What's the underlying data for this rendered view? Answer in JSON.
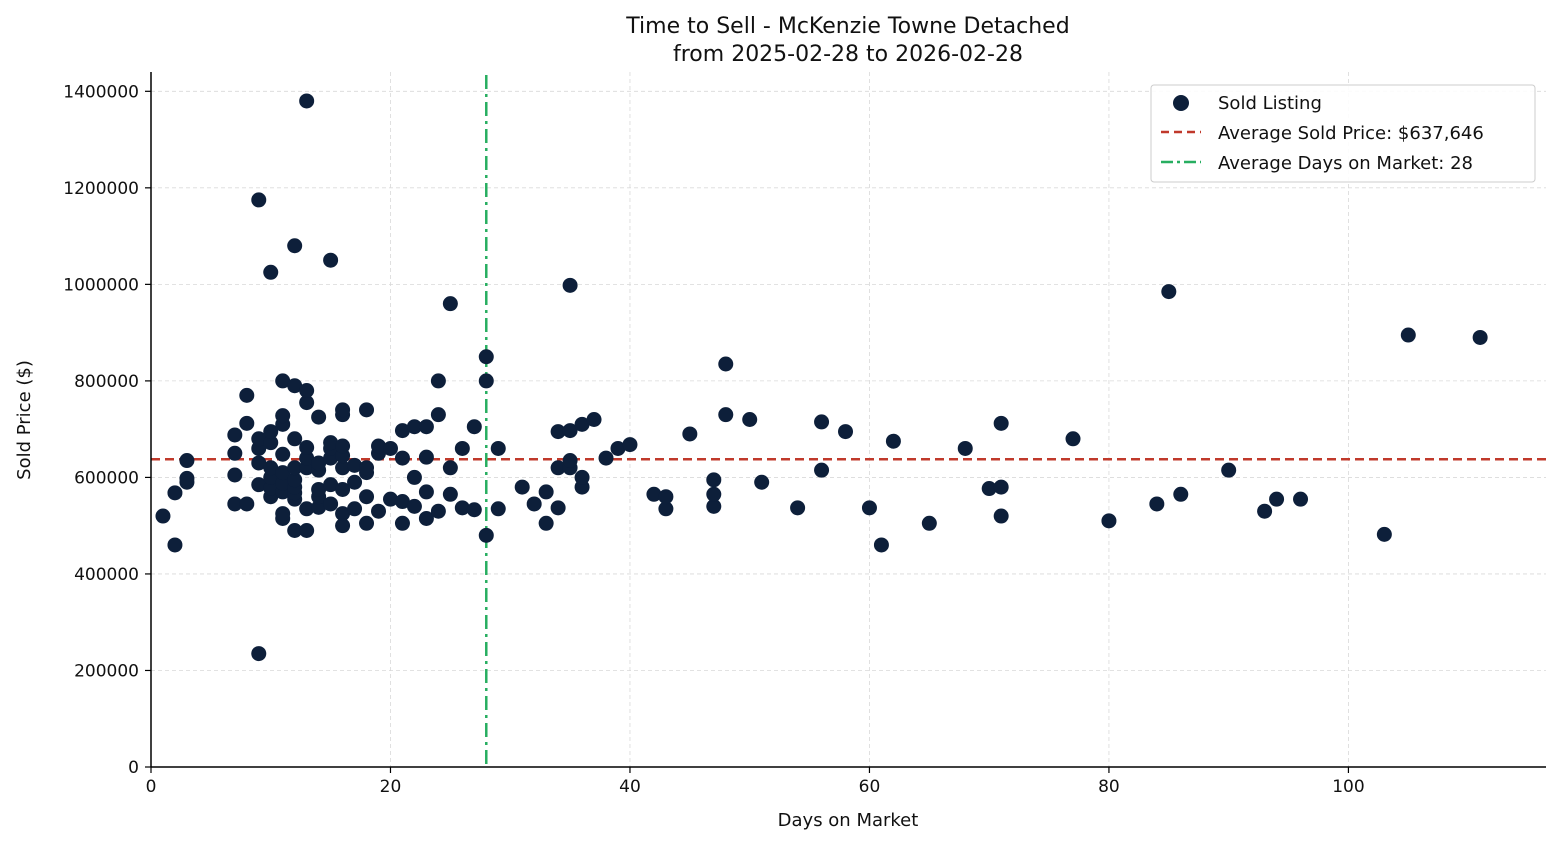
{
  "chart_data": {
    "type": "scatter",
    "title": "Time to Sell - McKenzie Towne Detached",
    "subtitle": "from 2025-02-28 to 2026-02-28",
    "xlabel": "Days on Market",
    "ylabel": "Sold Price ($)",
    "xlim": [
      0,
      116.5
    ],
    "ylim": [
      0,
      1440000
    ],
    "xticks": [
      0,
      20,
      40,
      60,
      80,
      100
    ],
    "yticks": [
      0,
      200000,
      400000,
      600000,
      800000,
      1000000,
      1200000,
      1400000
    ],
    "grid": true,
    "legend_position": "top-right",
    "colors": {
      "points": "#0d1f3a",
      "avg_price_line": "#c0392b",
      "avg_days_line": "#27ae60"
    },
    "avg_price": 637646,
    "avg_days": 28,
    "legend": [
      {
        "key": "points",
        "label": "Sold Listing"
      },
      {
        "key": "avg_price_line",
        "label": "Average Sold Price: $637,646"
      },
      {
        "key": "avg_days_line",
        "label": "Average Days on Market: 28"
      }
    ],
    "series": [
      {
        "name": "Sold Listing",
        "points": [
          [
            1,
            520000
          ],
          [
            2,
            460000
          ],
          [
            2,
            568000
          ],
          [
            3,
            590000
          ],
          [
            3,
            598000
          ],
          [
            3,
            635000
          ],
          [
            7,
            545000
          ],
          [
            7,
            605000
          ],
          [
            7,
            650000
          ],
          [
            7,
            688000
          ],
          [
            8,
            545000
          ],
          [
            8,
            712000
          ],
          [
            8,
            770000
          ],
          [
            9,
            235000
          ],
          [
            9,
            585000
          ],
          [
            9,
            630000
          ],
          [
            9,
            660000
          ],
          [
            9,
            680000
          ],
          [
            9,
            1175000
          ],
          [
            10,
            560000
          ],
          [
            10,
            578000
          ],
          [
            10,
            600000
          ],
          [
            10,
            620000
          ],
          [
            10,
            672000
          ],
          [
            10,
            695000
          ],
          [
            10,
            1025000
          ],
          [
            11,
            515000
          ],
          [
            11,
            525000
          ],
          [
            11,
            570000
          ],
          [
            11,
            588000
          ],
          [
            11,
            610000
          ],
          [
            11,
            648000
          ],
          [
            11,
            710000
          ],
          [
            11,
            728000
          ],
          [
            11,
            800000
          ],
          [
            12,
            490000
          ],
          [
            12,
            555000
          ],
          [
            12,
            568000
          ],
          [
            12,
            580000
          ],
          [
            12,
            595000
          ],
          [
            12,
            620000
          ],
          [
            12,
            680000
          ],
          [
            12,
            790000
          ],
          [
            12,
            1080000
          ],
          [
            13,
            490000
          ],
          [
            13,
            535000
          ],
          [
            13,
            620000
          ],
          [
            13,
            640000
          ],
          [
            13,
            662000
          ],
          [
            13,
            755000
          ],
          [
            13,
            780000
          ],
          [
            13,
            1380000
          ],
          [
            14,
            538000
          ],
          [
            14,
            560000
          ],
          [
            14,
            575000
          ],
          [
            14,
            615000
          ],
          [
            14,
            630000
          ],
          [
            14,
            725000
          ],
          [
            15,
            545000
          ],
          [
            15,
            585000
          ],
          [
            15,
            640000
          ],
          [
            15,
            660000
          ],
          [
            15,
            672000
          ],
          [
            15,
            1050000
          ],
          [
            16,
            500000
          ],
          [
            16,
            525000
          ],
          [
            16,
            575000
          ],
          [
            16,
            620000
          ],
          [
            16,
            645000
          ],
          [
            16,
            665000
          ],
          [
            16,
            730000
          ],
          [
            16,
            740000
          ],
          [
            17,
            535000
          ],
          [
            17,
            590000
          ],
          [
            17,
            625000
          ],
          [
            18,
            505000
          ],
          [
            18,
            560000
          ],
          [
            18,
            610000
          ],
          [
            18,
            620000
          ],
          [
            18,
            740000
          ],
          [
            19,
            530000
          ],
          [
            19,
            650000
          ],
          [
            19,
            665000
          ],
          [
            20,
            555000
          ],
          [
            20,
            660000
          ],
          [
            21,
            505000
          ],
          [
            21,
            550000
          ],
          [
            21,
            640000
          ],
          [
            21,
            697000
          ],
          [
            22,
            540000
          ],
          [
            22,
            600000
          ],
          [
            22,
            705000
          ],
          [
            23,
            515000
          ],
          [
            23,
            570000
          ],
          [
            23,
            642000
          ],
          [
            23,
            705000
          ],
          [
            24,
            530000
          ],
          [
            24,
            730000
          ],
          [
            24,
            800000
          ],
          [
            25,
            565000
          ],
          [
            25,
            620000
          ],
          [
            25,
            960000
          ],
          [
            26,
            537000
          ],
          [
            26,
            660000
          ],
          [
            27,
            533000
          ],
          [
            27,
            705000
          ],
          [
            28,
            480000
          ],
          [
            28,
            800000
          ],
          [
            28,
            850000
          ],
          [
            29,
            535000
          ],
          [
            29,
            660000
          ],
          [
            31,
            580000
          ],
          [
            32,
            545000
          ],
          [
            33,
            505000
          ],
          [
            33,
            570000
          ],
          [
            34,
            537000
          ],
          [
            34,
            620000
          ],
          [
            34,
            695000
          ],
          [
            35,
            620000
          ],
          [
            35,
            635000
          ],
          [
            35,
            697000
          ],
          [
            35,
            998000
          ],
          [
            36,
            580000
          ],
          [
            36,
            600000
          ],
          [
            36,
            710000
          ],
          [
            37,
            720000
          ],
          [
            38,
            640000
          ],
          [
            39,
            660000
          ],
          [
            40,
            668000
          ],
          [
            42,
            565000
          ],
          [
            43,
            535000
          ],
          [
            43,
            560000
          ],
          [
            45,
            690000
          ],
          [
            47,
            540000
          ],
          [
            47,
            565000
          ],
          [
            47,
            595000
          ],
          [
            48,
            730000
          ],
          [
            48,
            835000
          ],
          [
            50,
            720000
          ],
          [
            51,
            590000
          ],
          [
            54,
            537000
          ],
          [
            56,
            615000
          ],
          [
            56,
            715000
          ],
          [
            58,
            695000
          ],
          [
            60,
            537000
          ],
          [
            61,
            460000
          ],
          [
            62,
            675000
          ],
          [
            65,
            505000
          ],
          [
            68,
            660000
          ],
          [
            70,
            577000
          ],
          [
            71,
            520000
          ],
          [
            71,
            580000
          ],
          [
            71,
            712000
          ],
          [
            77,
            680000
          ],
          [
            80,
            510000
          ],
          [
            84,
            545000
          ],
          [
            85,
            985000
          ],
          [
            86,
            565000
          ],
          [
            90,
            615000
          ],
          [
            93,
            530000
          ],
          [
            94,
            555000
          ],
          [
            96,
            555000
          ],
          [
            103,
            482000
          ],
          [
            105,
            895000
          ],
          [
            111,
            890000
          ]
        ]
      }
    ]
  }
}
